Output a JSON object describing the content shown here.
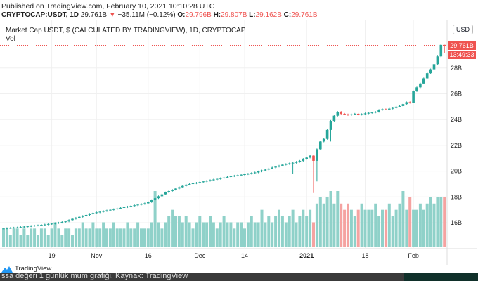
{
  "header": {
    "published": "Published on TradingView.com, February 10, 2021 10:10:28 UTC",
    "symbol": "CRYPTOCAP:USDT, 1D",
    "last": "29.761B",
    "change": "−35.11M (−0.12%)",
    "o_label": "O:",
    "o": "29.796B",
    "h_label": "H:",
    "h": "29.807B",
    "l_label": "L:",
    "l": "29.162B",
    "c_label": "C:",
    "c": "29.761B"
  },
  "legend": {
    "title": "Market Cap USDT, $ (CALCULATED BY TRADINGVIEW), 1D, CRYPTOCAP",
    "volume": "Vol"
  },
  "currency_button": "USD",
  "price_tag": "29.761B",
  "countdown_tag": "13:49:33",
  "footer": {
    "brand": "TradingView",
    "caption": "ssa değeri 1 günlük mum grafiği. Kaynak: TradingView"
  },
  "colors": {
    "up": "#26a69a",
    "down": "#ef5350",
    "up_volume": "#8fd1c9",
    "down_volume": "#f5a3a1"
  },
  "chart_data": {
    "type": "candlestick",
    "start_date": "2020-10-05",
    "y_unit": "B",
    "y_ticks": [
      "16B",
      "18B",
      "20B",
      "22B",
      "24B",
      "26B",
      "28B"
    ],
    "y_tick_values": [
      16,
      18,
      20,
      22,
      24,
      26,
      28
    ],
    "x_ticks": [
      {
        "label": "19",
        "date": "2020-10-19"
      },
      {
        "label": "Nov",
        "date": "2020-11-01"
      },
      {
        "label": "16",
        "date": "2020-11-16"
      },
      {
        "label": "Dec",
        "date": "2020-12-01"
      },
      {
        "label": "14",
        "date": "2020-12-14"
      },
      {
        "label": "2021",
        "date": "2021-01-01",
        "bold": true
      },
      {
        "label": "18",
        "date": "2021-01-18"
      },
      {
        "label": "Feb",
        "date": "2021-02-01"
      }
    ],
    "last_price": 29.761,
    "closes": [
      15.55,
      15.58,
      15.6,
      15.62,
      15.63,
      15.66,
      15.7,
      15.72,
      15.75,
      15.78,
      15.8,
      15.83,
      15.86,
      15.9,
      15.93,
      15.97,
      16.0,
      16.05,
      16.1,
      16.2,
      16.3,
      16.38,
      16.45,
      16.52,
      16.6,
      16.68,
      16.75,
      16.8,
      16.85,
      16.9,
      16.95,
      17.0,
      17.05,
      17.1,
      17.15,
      17.2,
      17.25,
      17.3,
      17.35,
      17.4,
      17.45,
      17.5,
      17.6,
      17.75,
      17.9,
      18.05,
      18.2,
      18.35,
      18.45,
      18.55,
      18.65,
      18.75,
      18.85,
      18.95,
      19.0,
      19.05,
      19.1,
      19.15,
      19.2,
      19.25,
      19.3,
      19.35,
      19.4,
      19.45,
      19.5,
      19.55,
      19.6,
      19.65,
      19.68,
      19.72,
      19.76,
      19.8,
      19.85,
      19.9,
      19.98,
      20.05,
      20.12,
      20.2,
      20.28,
      20.35,
      20.42,
      20.5,
      20.55,
      20.6,
      20.65,
      20.72,
      20.8,
      20.95,
      21.05,
      21.2,
      20.8,
      21.7,
      22.3,
      22.5,
      23.2,
      23.9,
      24.3,
      24.6,
      24.45,
      24.4,
      24.35,
      24.4,
      24.45,
      24.38,
      24.42,
      24.48,
      24.52,
      24.55,
      24.6,
      24.75,
      24.8,
      24.78,
      24.85,
      24.9,
      25.0,
      25.05,
      25.2,
      25.35,
      25.3,
      26.2,
      26.5,
      26.8,
      27.2,
      27.6,
      27.9,
      28.3,
      28.9,
      29.796,
      29.761
    ],
    "low_overrides": {
      "2021-01-03": 18.3,
      "2021-01-04": 19.2,
      "2020-12-28": 19.8,
      "2021-01-08": 22.3,
      "2021-02-01": 25.3,
      "2021-02-10": 29.162
    },
    "high_overrides": {
      "2021-02-10": 29.807
    },
    "volumes": [
      3,
      3,
      2,
      3,
      3,
      2,
      3,
      2,
      3,
      3,
      2,
      3,
      3,
      2,
      3,
      4,
      3,
      2,
      3,
      3,
      2,
      3,
      3,
      4,
      3,
      3,
      4,
      3,
      3,
      4,
      3,
      3,
      4,
      3,
      3,
      3,
      4,
      3,
      3,
      4,
      3,
      3,
      3,
      4,
      9,
      4,
      3,
      4,
      5,
      6,
      5,
      5,
      4,
      5,
      4,
      3,
      4,
      5,
      4,
      4,
      5,
      4,
      3,
      4,
      5,
      4,
      4,
      3,
      4,
      4,
      3,
      4,
      5,
      4,
      4,
      6,
      4,
      5,
      4,
      5,
      6,
      5,
      4,
      5,
      6,
      4,
      5,
      6,
      5,
      6,
      4,
      7,
      8,
      7,
      8,
      9,
      7,
      9,
      7,
      6,
      7,
      6,
      5,
      6,
      7,
      6,
      6,
      6,
      7,
      5,
      6,
      6,
      7,
      5,
      6,
      7,
      9,
      6,
      8,
      6,
      6,
      7,
      6,
      7,
      8,
      7,
      8,
      8,
      8
    ]
  }
}
